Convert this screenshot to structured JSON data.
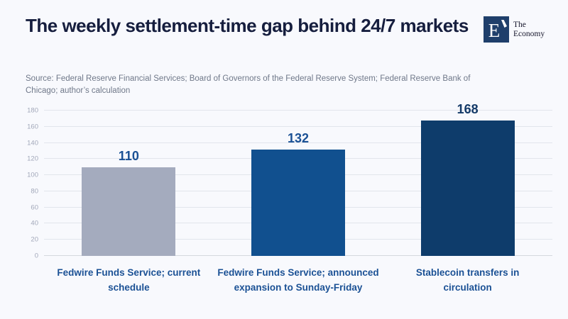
{
  "header": {
    "title": "The weekly settlement-time gap behind 24/7 markets",
    "logo": {
      "mark": "E",
      "brand_line1": "The",
      "brand_line2": "Economy"
    }
  },
  "source": {
    "text": "Source: Federal Reserve Financial Services; Board of Governors of the Federal Reserve System; Federal Reserve Bank of Chicago; author’s calculation"
  },
  "colors": {
    "background": "#f8f9fd",
    "title": "#161e3e",
    "source_text": "#6f7889",
    "category_label": "#1b5195",
    "axis_tick": "#a2a8ba",
    "gridline": "#e2e5ec",
    "baseline": "#d5d8de",
    "logo_navy": "#1f3f6b"
  },
  "chart_data": {
    "type": "bar",
    "title": "The weekly settlement-time gap behind 24/7 markets",
    "categories": [
      "Fedwire Funds Service; current schedule",
      "Fedwire Funds Service; announced expansion to Sunday-Friday",
      "Stablecoin transfers in circulation"
    ],
    "values": [
      110,
      132,
      168
    ],
    "bar_colors": [
      "#a4abbe",
      "#11508f",
      "#0e3c6b"
    ],
    "value_label_colors": [
      "#1b5195",
      "#1b5195",
      "#143a68"
    ],
    "xlabel": "",
    "ylabel": "",
    "ylim": [
      0,
      180
    ],
    "ytick_step": 20,
    "grid": true,
    "legend": false,
    "value_labels_shown": true
  }
}
